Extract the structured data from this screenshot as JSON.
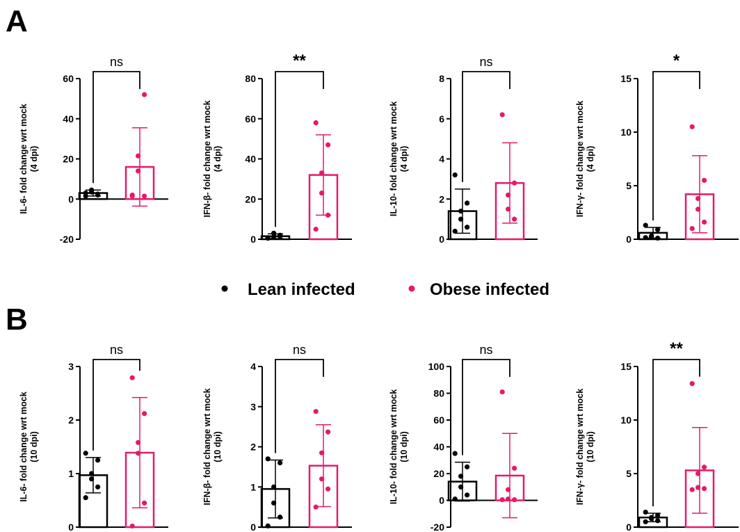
{
  "panels": [
    {
      "letter": "A"
    },
    {
      "letter": "B"
    }
  ],
  "legend": {
    "entries": [
      {
        "label": "Lean infected",
        "color": "#000000"
      },
      {
        "label": "Obese infected",
        "color": "#E5196A"
      }
    ]
  },
  "colors": {
    "lean": "#000000",
    "obese": "#E5196A"
  },
  "chart_data": [
    {
      "type": "bar",
      "panel": "A",
      "ylabel": [
        "IL-6- fold change wrt mock",
        "(4 dpi)"
      ],
      "ylim": [
        -20,
        60
      ],
      "yticks": [
        -20,
        0,
        20,
        40,
        60
      ],
      "significance": "ns",
      "categories": [
        "Lean infected",
        "Obese infected"
      ],
      "series": [
        {
          "name": "Lean infected",
          "mean": 3,
          "sd": 1.5,
          "points": [
            1.5,
            2.5,
            3.5,
            4.5,
            2,
            3
          ]
        },
        {
          "name": "Obese infected",
          "mean": 16,
          "sd": 19.5,
          "points": [
            1.5,
            52,
            21.5,
            14,
            1.5,
            2
          ]
        }
      ]
    },
    {
      "type": "bar",
      "panel": "A",
      "ylabel": [
        "IFN-β- fold change wrt mock",
        "(4 dpi)"
      ],
      "ylim": [
        0,
        80
      ],
      "yticks": [
        0,
        20,
        40,
        60,
        80
      ],
      "significance": "**",
      "categories": [
        "Lean infected",
        "Obese infected"
      ],
      "series": [
        {
          "name": "Lean infected",
          "mean": 1.5,
          "sd": 1.2,
          "points": [
            0.5,
            1.5,
            3,
            1,
            2,
            0.8
          ]
        },
        {
          "name": "Obese infected",
          "mean": 32,
          "sd": 20,
          "points": [
            58,
            47,
            33,
            23,
            12,
            5
          ]
        }
      ]
    },
    {
      "type": "bar",
      "panel": "A",
      "ylabel": [
        "IL-10- fold change wrt mock",
        "(4 dpi)"
      ],
      "ylim": [
        0,
        8
      ],
      "yticks": [
        0,
        2,
        4,
        6,
        8
      ],
      "significance": "ns",
      "categories": [
        "Lean infected",
        "Obese infected"
      ],
      "series": [
        {
          "name": "Lean infected",
          "mean": 1.4,
          "sd": 1.1,
          "points": [
            3.2,
            1.8,
            1.4,
            1.0,
            0.6,
            0.4
          ]
        },
        {
          "name": "Obese infected",
          "mean": 2.8,
          "sd": 2.0,
          "points": [
            6.2,
            2.8,
            2.2,
            1.5,
            1.0
          ]
        }
      ]
    },
    {
      "type": "bar",
      "panel": "A",
      "ylabel": [
        "IFN-γ- fold change wrt mock",
        "(4 dpi)"
      ],
      "ylim": [
        0,
        15
      ],
      "yticks": [
        0,
        5,
        10,
        15
      ],
      "significance": "*",
      "categories": [
        "Lean infected",
        "Obese infected"
      ],
      "series": [
        {
          "name": "Lean infected",
          "mean": 0.6,
          "sd": 0.5,
          "points": [
            1.3,
            0.9,
            0.3,
            0.2,
            0.1,
            0.15
          ]
        },
        {
          "name": "Obese infected",
          "mean": 4.2,
          "sd": 3.6,
          "points": [
            10.5,
            5.5,
            3.8,
            2.8,
            1.6,
            1.0
          ]
        }
      ]
    },
    {
      "type": "bar",
      "panel": "B",
      "ylabel": [
        "IL-6- fold change wrt mock",
        "(10 dpi)"
      ],
      "ylim": [
        0,
        3
      ],
      "yticks": [
        0,
        1,
        2,
        3
      ],
      "significance": "ns",
      "categories": [
        "Lean infected",
        "Obese infected"
      ],
      "series": [
        {
          "name": "Lean infected",
          "mean": 0.97,
          "sd": 0.33,
          "points": [
            1.38,
            1.25,
            1.0,
            0.9,
            0.75,
            0.55
          ]
        },
        {
          "name": "Obese infected",
          "mean": 1.39,
          "sd": 1.03,
          "points": [
            2.79,
            2.12,
            1.58,
            1.38,
            0.45,
            0.02
          ]
        }
      ]
    },
    {
      "type": "bar",
      "panel": "B",
      "ylabel": [
        "IFN-β- fold change wrt mock",
        "(10 dpi)"
      ],
      "ylim": [
        0,
        4
      ],
      "yticks": [
        0,
        1,
        2,
        3,
        4
      ],
      "significance": "ns",
      "categories": [
        "Lean infected",
        "Obese infected"
      ],
      "series": [
        {
          "name": "Lean infected",
          "mean": 0.95,
          "sd": 0.72,
          "points": [
            1.7,
            1.6,
            1.0,
            0.6,
            0.25,
            0.03
          ]
        },
        {
          "name": "Obese infected",
          "mean": 1.53,
          "sd": 1.02,
          "points": [
            2.88,
            2.37,
            1.85,
            1.2,
            0.95,
            0.5
          ]
        }
      ]
    },
    {
      "type": "bar",
      "panel": "B",
      "ylabel": [
        "IL-10- fold change wrt mock",
        "(10 dpi)"
      ],
      "ylim": [
        -20,
        100
      ],
      "yticks": [
        -20,
        0,
        20,
        40,
        60,
        80,
        100
      ],
      "significance": "ns",
      "categories": [
        "Lean infected",
        "Obese infected"
      ],
      "series": [
        {
          "name": "Lean infected",
          "mean": 14,
          "sd": 14.5,
          "points": [
            35,
            25,
            18,
            10,
            4,
            1
          ]
        },
        {
          "name": "Obese infected",
          "mean": 18.5,
          "sd": 31.5,
          "points": [
            81,
            24,
            8,
            1,
            0.5,
            0.5
          ]
        }
      ]
    },
    {
      "type": "bar",
      "panel": "B",
      "ylabel": [
        "IFN-γ- fold change wrt mock",
        "(10 dpi)"
      ],
      "ylim": [
        0,
        15
      ],
      "yticks": [
        0,
        5,
        10,
        15
      ],
      "significance": "**",
      "categories": [
        "Lean infected",
        "Obese infected"
      ],
      "series": [
        {
          "name": "Lean infected",
          "mean": 0.9,
          "sd": 0.4,
          "points": [
            1.4,
            1.1,
            0.9,
            0.8,
            0.6,
            0.5
          ]
        },
        {
          "name": "Obese infected",
          "mean": 5.3,
          "sd": 4.0,
          "points": [
            13.4,
            5.6,
            5.0,
            3.7,
            3.6,
            3.5
          ]
        }
      ]
    }
  ]
}
